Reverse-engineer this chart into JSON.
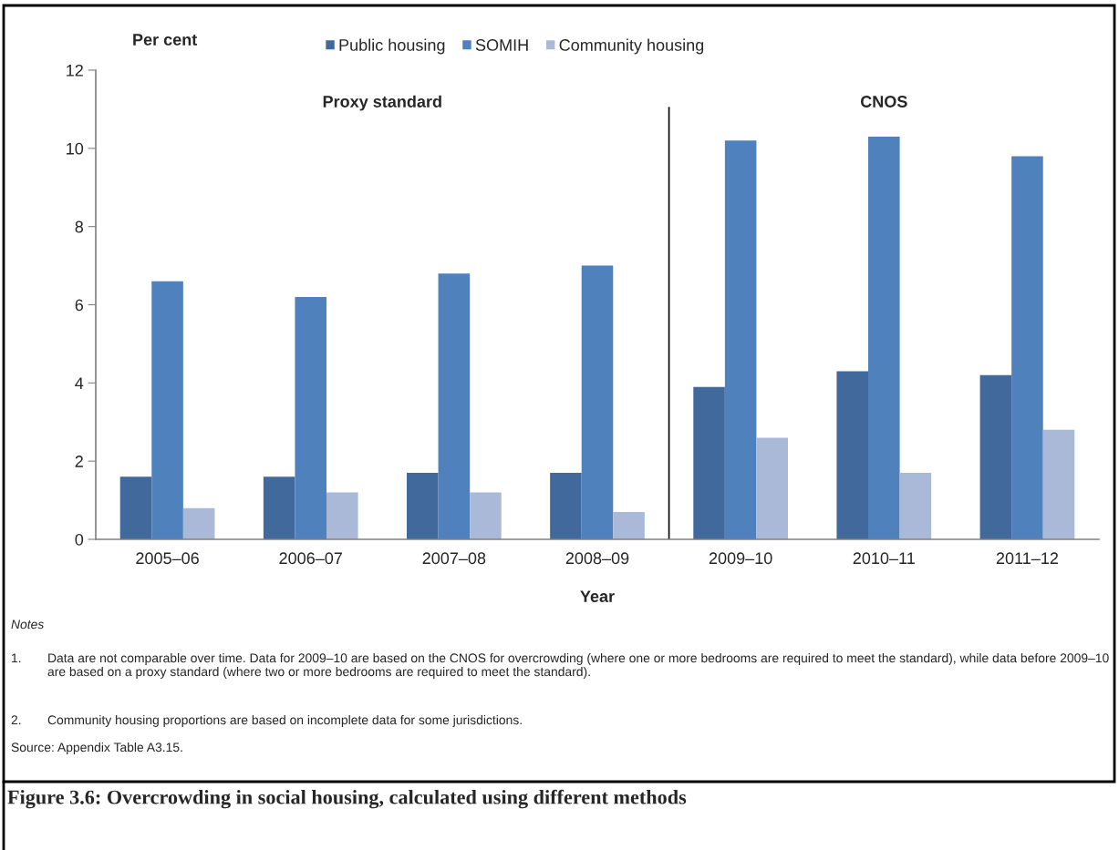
{
  "chart_data": {
    "type": "bar",
    "title": "Figure 3.6: Overcrowding in social housing, calculated using different methods",
    "xlabel": "Year",
    "ylabel": "Per cent",
    "categories": [
      "2005–06",
      "2006–07",
      "2007–08",
      "2008–09",
      "2009–10",
      "2010–11",
      "2011–12"
    ],
    "series": [
      {
        "name": "Public housing",
        "color": "#41699c",
        "values": [
          1.6,
          1.6,
          1.7,
          1.7,
          3.9,
          4.3,
          4.2
        ]
      },
      {
        "name": "SOMIH",
        "color": "#4f81bd",
        "values": [
          6.6,
          6.2,
          6.8,
          7.0,
          10.2,
          10.3,
          9.8
        ]
      },
      {
        "name": "Community housing",
        "color": "#aab9d7",
        "values": [
          0.8,
          1.2,
          1.2,
          0.7,
          2.6,
          1.7,
          2.8
        ]
      }
    ],
    "ylim": [
      0,
      12
    ],
    "yticks": [
      0,
      2,
      4,
      6,
      8,
      10,
      12
    ],
    "grid": false,
    "legend": "top",
    "annotations": [
      "Proxy standard",
      "CNOS",
      "Notes",
      "1.",
      "Data are not comparable over time. Data for 2009–10 are based on the CNOS for overcrowding (where one or more bedrooms are required to meet the standard), while data before 2009–10 are based on a proxy standard (where two or more bedrooms are required to meet the standard).",
      "2.",
      "Community housing proportions are based on incomplete data for some jurisdictions.",
      "Source: Appendix Table A3.15."
    ]
  }
}
